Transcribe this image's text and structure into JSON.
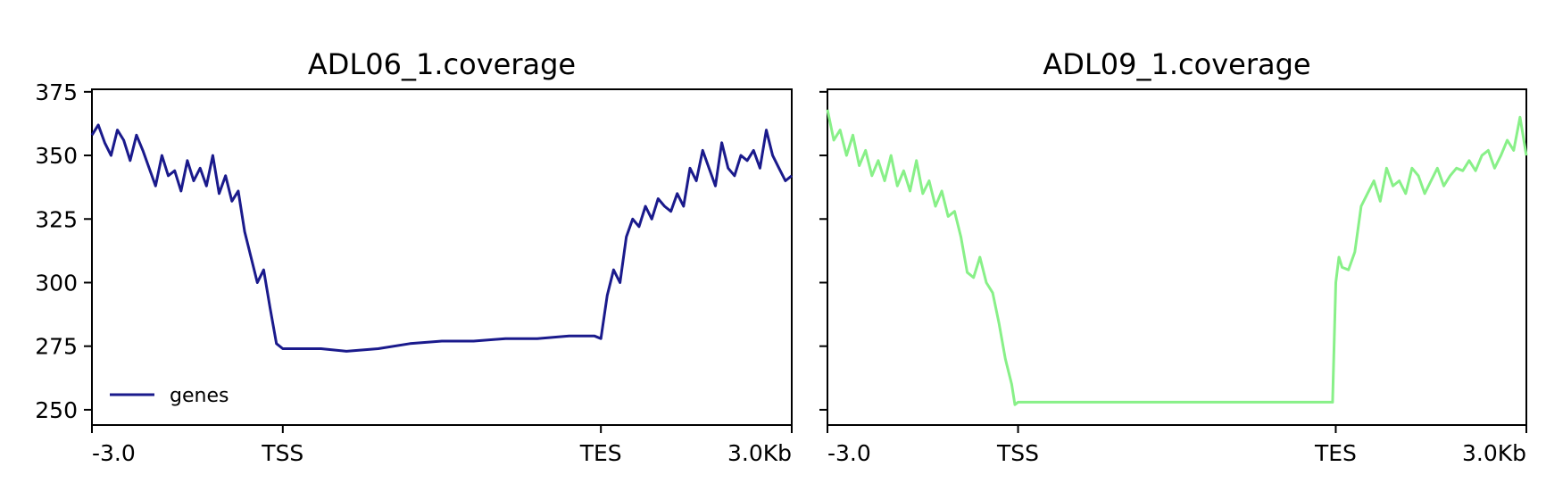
{
  "chart_data": [
    {
      "type": "line",
      "title": "ADL06_1.coverage",
      "xlabel": "",
      "ylabel": "",
      "x_ticks": [
        "-3.0",
        "TSS",
        "TES",
        "3.0Kb"
      ],
      "x_tick_positions": [
        0,
        3000,
        8000,
        11000
      ],
      "xlim": [
        0,
        11000
      ],
      "y_ticks": [
        250,
        275,
        300,
        325,
        350,
        375
      ],
      "ylim": [
        244,
        376
      ],
      "legend": {
        "placement": "lower-left",
        "entries": [
          "genes"
        ]
      },
      "series": [
        {
          "name": "genes",
          "color": "#1a1a8c",
          "x": [
            0,
            100,
            200,
            300,
            400,
            500,
            600,
            700,
            800,
            900,
            1000,
            1100,
            1200,
            1300,
            1400,
            1500,
            1600,
            1700,
            1800,
            1900,
            2000,
            2100,
            2200,
            2300,
            2400,
            2500,
            2600,
            2700,
            2800,
            2900,
            3000,
            3100,
            3300,
            3600,
            4000,
            4500,
            5000,
            5500,
            6000,
            6500,
            7000,
            7500,
            7900,
            8000,
            8100,
            8200,
            8300,
            8400,
            8500,
            8600,
            8700,
            8800,
            8900,
            9000,
            9100,
            9200,
            9300,
            9400,
            9500,
            9600,
            9700,
            9800,
            9900,
            10000,
            10100,
            10200,
            10300,
            10400,
            10500,
            10600,
            10700,
            10800,
            10900,
            11000
          ],
          "values": [
            358,
            362,
            355,
            350,
            360,
            356,
            348,
            358,
            352,
            345,
            338,
            350,
            342,
            344,
            336,
            348,
            340,
            345,
            338,
            350,
            335,
            342,
            332,
            336,
            320,
            310,
            300,
            305,
            290,
            276,
            274,
            274,
            274,
            274,
            273,
            274,
            276,
            277,
            277,
            278,
            278,
            279,
            279,
            278,
            295,
            305,
            300,
            318,
            325,
            322,
            330,
            325,
            333,
            330,
            328,
            335,
            330,
            345,
            340,
            352,
            345,
            338,
            355,
            345,
            342,
            350,
            348,
            352,
            345,
            360,
            350,
            345,
            340,
            342
          ]
        }
      ]
    },
    {
      "type": "line",
      "title": "ADL09_1.coverage",
      "xlabel": "",
      "ylabel": "",
      "x_ticks": [
        "-3.0",
        "TSS",
        "TES",
        "3.0Kb"
      ],
      "x_tick_positions": [
        0,
        3000,
        8000,
        11000
      ],
      "xlim": [
        0,
        11000
      ],
      "ylim": [
        244,
        376
      ],
      "series": [
        {
          "name": "",
          "color": "#88f088",
          "x": [
            0,
            100,
            200,
            300,
            400,
            500,
            600,
            700,
            800,
            900,
            1000,
            1100,
            1200,
            1300,
            1400,
            1500,
            1600,
            1700,
            1800,
            1900,
            2000,
            2100,
            2200,
            2300,
            2400,
            2500,
            2600,
            2700,
            2800,
            2900,
            2950,
            3000,
            3100,
            4000,
            5000,
            6000,
            7000,
            7950,
            8000,
            8050,
            8100,
            8200,
            8300,
            8400,
            8500,
            8600,
            8700,
            8800,
            8900,
            9000,
            9100,
            9200,
            9300,
            9400,
            9500,
            9600,
            9700,
            9800,
            9900,
            10000,
            10100,
            10200,
            10300,
            10400,
            10500,
            10600,
            10700,
            10800,
            10900,
            11000
          ],
          "values": [
            368,
            356,
            360,
            350,
            358,
            346,
            352,
            342,
            348,
            340,
            350,
            338,
            344,
            336,
            348,
            335,
            340,
            330,
            336,
            326,
            328,
            318,
            304,
            302,
            310,
            300,
            296,
            284,
            270,
            260,
            252,
            253,
            253,
            253,
            253,
            253,
            253,
            253,
            300,
            310,
            306,
            305,
            312,
            330,
            335,
            340,
            332,
            345,
            338,
            340,
            335,
            345,
            342,
            335,
            340,
            345,
            338,
            342,
            345,
            344,
            348,
            344,
            350,
            352,
            345,
            350,
            356,
            352,
            365,
            350
          ]
        }
      ]
    }
  ]
}
